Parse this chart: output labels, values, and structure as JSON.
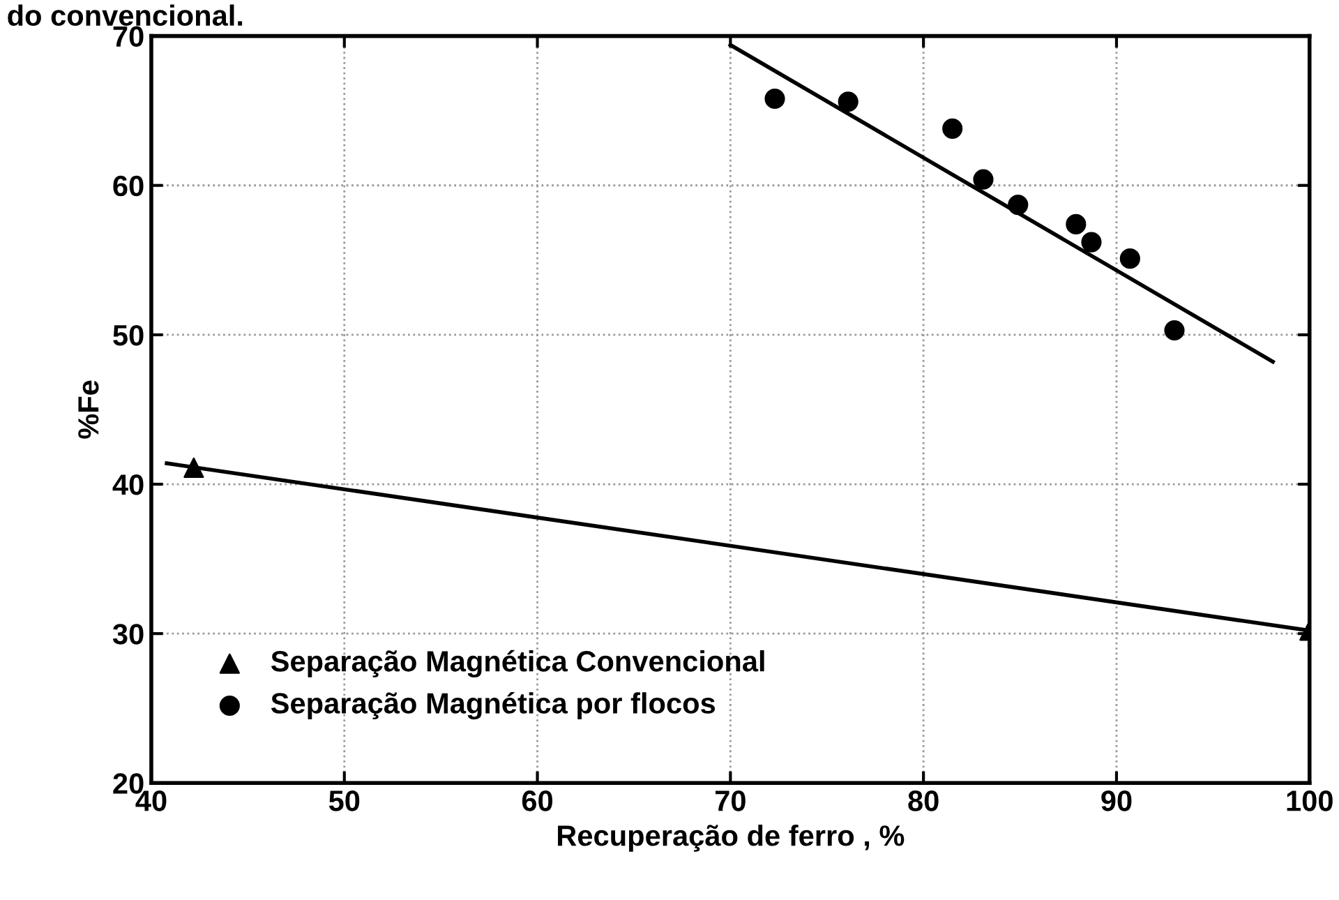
{
  "chart_data": {
    "type": "scatter",
    "xlabel": "Recuperação de ferro , %",
    "ylabel": "%Fe",
    "annotations": [
      "do convencional."
    ],
    "xlim": [
      40,
      100
    ],
    "xticks": [
      40,
      50,
      60,
      70,
      80,
      90,
      100
    ],
    "ylim": [
      20,
      70
    ],
    "yticks": [
      20,
      30,
      40,
      50,
      60,
      70
    ],
    "grid": true,
    "legend": "bottom left",
    "series": [
      {
        "name": "Separação Magnética Convencional",
        "color": "#000000",
        "marker": "triangle",
        "x": [
          42.2,
          100
        ],
        "values": [
          41.1,
          30.2
        ]
      },
      {
        "name": "Separação Magnética por flocos",
        "color": "#000000",
        "marker": "circle",
        "x": [
          72.3,
          76.1,
          81.5,
          83.1,
          84.9,
          87.9,
          88.7,
          90.7,
          93.0
        ],
        "values": [
          65.8,
          65.6,
          63.8,
          60.4,
          58.7,
          57.4,
          56.2,
          55.1,
          50.3
        ]
      },
      {
        "type": "line",
        "color": "#000000",
        "x": [
          40.8,
          100
        ],
        "values": [
          41.4,
          30.2
        ]
      },
      {
        "type": "line",
        "color": "#000000",
        "x": [
          70.0,
          98.1
        ],
        "values": [
          69.4,
          48.2
        ]
      }
    ]
  }
}
